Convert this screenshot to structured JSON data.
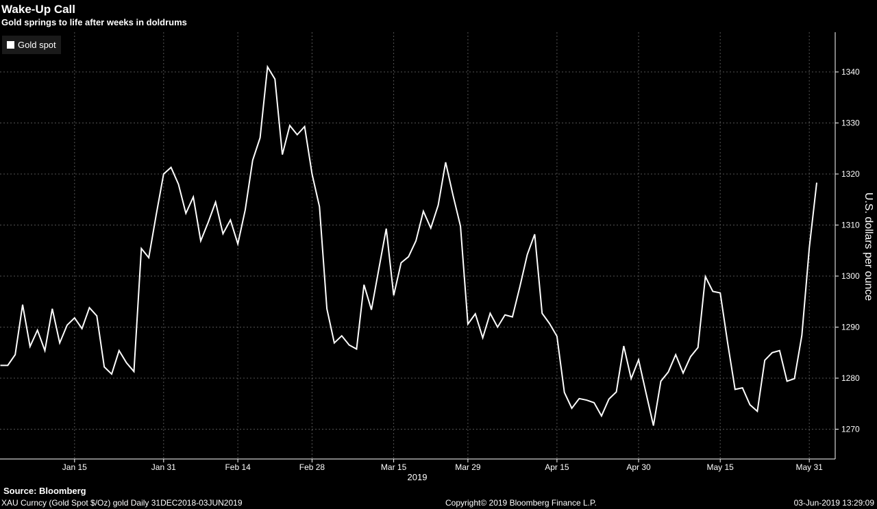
{
  "title": "Wake-Up Call",
  "subtitle": "Gold springs to life after weeks in doldrums",
  "source": "Source: Bloomberg",
  "footer": {
    "left": "XAU Curncy (Gold Spot  $/Oz) gold  Daily 31DEC2018-03JUN2019",
    "center": "Copyright© 2019 Bloomberg Finance L.P.",
    "right": "03-Jun-2019 13:29:09"
  },
  "colors": {
    "background": "#000000",
    "line": "#ffffff",
    "grid": "#555555",
    "text": "#ffffff"
  },
  "chart_data": {
    "type": "line",
    "title": "Wake-Up Call",
    "subtitle": "Gold springs to life after weeks in doldrums",
    "ylabel": "U.S. dollars per ounce",
    "xlabel": "",
    "year_label": "2019",
    "legend_position": "top-left",
    "grid": true,
    "ylim": [
      1264,
      1347
    ],
    "yticks": [
      1270,
      1280,
      1290,
      1300,
      1310,
      1320,
      1330,
      1340
    ],
    "xticks": [
      "Jan 15",
      "Jan 31",
      "Feb 14",
      "Feb 28",
      "Mar 15",
      "Mar 29",
      "Apr 15",
      "Apr 30",
      "May 15",
      "May 31"
    ],
    "xtick_index": [
      10,
      22,
      32,
      42,
      53,
      63,
      75,
      86,
      97,
      109
    ],
    "series": [
      {
        "name": "Gold spot",
        "values": [
          1282.5,
          1282.5,
          1284.6,
          1294.4,
          1286.2,
          1289.4,
          1285.4,
          1293.6,
          1286.9,
          1290.4,
          1291.8,
          1289.7,
          1293.8,
          1292.2,
          1282.2,
          1280.8,
          1285.4,
          1283.0,
          1281.3,
          1305.4,
          1303.6,
          1312.0,
          1320.0,
          1321.3,
          1318.0,
          1312.3,
          1315.5,
          1306.9,
          1310.5,
          1314.5,
          1308.3,
          1311.0,
          1306.3,
          1313.0,
          1322.7,
          1327.1,
          1341.0,
          1338.6,
          1323.8,
          1329.5,
          1327.7,
          1329.3,
          1320.0,
          1313.6,
          1293.6,
          1286.9,
          1288.3,
          1286.5,
          1285.7,
          1298.3,
          1293.4,
          1301.4,
          1309.3,
          1296.2,
          1302.6,
          1303.8,
          1306.9,
          1312.7,
          1309.4,
          1313.9,
          1322.3,
          1315.8,
          1309.8,
          1290.6,
          1292.6,
          1287.9,
          1292.7,
          1290.0,
          1292.4,
          1292.0,
          1297.9,
          1304.2,
          1308.2,
          1292.7,
          1290.7,
          1288.2,
          1277.2,
          1274.1,
          1276.0,
          1275.7,
          1275.2,
          1272.6,
          1275.9,
          1277.3,
          1286.3,
          1279.9,
          1283.6,
          1277.1,
          1270.7,
          1279.4,
          1281.2,
          1284.6,
          1281.0,
          1284.2,
          1286.0,
          1299.9,
          1297.0,
          1296.7,
          1286.9,
          1277.8,
          1278.1,
          1274.8,
          1273.5,
          1283.5,
          1285.0,
          1285.4,
          1279.4,
          1279.9,
          1288.4,
          1305.5,
          1318.3
        ]
      }
    ]
  }
}
